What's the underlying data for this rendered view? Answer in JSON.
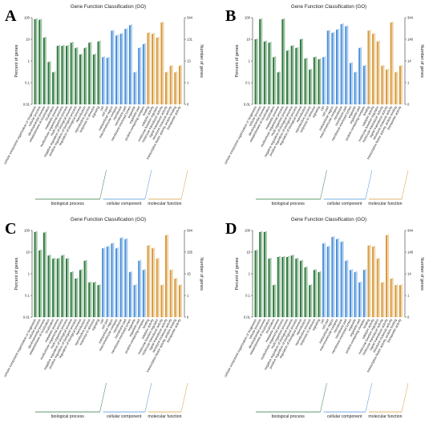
{
  "chart_data": [
    {
      "type": "bar",
      "panel_letter": "A",
      "title": "Gene Function Classification (GO)",
      "ylabel_left": "Percent of genes",
      "ylabel_right": "Number of genes",
      "y_scale": "log",
      "ylim": [
        0.01,
        100
      ],
      "left_ticks": [
        "0.01",
        "0.1",
        "1",
        "10",
        "100"
      ],
      "right_ticks": [
        "0",
        "1",
        "13",
        "131",
        "344"
      ],
      "groups": [
        {
          "name": "biological process",
          "color": "#2f7a3d",
          "categories": [
            "cellular component organization or biogenesis",
            "cellular process",
            "developmental process",
            "establishment of localization",
            "localization",
            "metabolic process",
            "multicellular organismal process",
            "multi-organism process",
            "negative regulation of biological process",
            "positive regulation of biological process",
            "regulation of biological process",
            "reproduction",
            "reproductive process",
            "response to stimulus",
            "signaling"
          ],
          "values": [
            85,
            80,
            12,
            0.9,
            0.3,
            5,
            5,
            5,
            7,
            4,
            2,
            4,
            7,
            2,
            8
          ]
        },
        {
          "name": "cellular component",
          "color": "#4a90d9",
          "categories": [
            "cell",
            "cell part",
            "extracellular region",
            "macromolecular complex",
            "membrane",
            "membrane part",
            "membrane-enclosed lumen",
            "organelle",
            "organelle part",
            "protein-containing complex"
          ],
          "values": [
            1.5,
            1.4,
            25,
            15,
            18,
            30,
            45,
            0.3,
            4,
            6
          ]
        },
        {
          "name": "molecular function",
          "color": "#d89a3c",
          "categories": [
            "binding",
            "catalytic activity",
            "molecular function regulator",
            "molecular transducer activity",
            "signal transducer activity",
            "structural molecule activity",
            "transcription factor activity, protein binding",
            "transporter activity"
          ],
          "values": [
            20,
            18,
            12,
            60,
            0.3,
            0.6,
            0.3,
            0.6
          ]
        }
      ]
    },
    {
      "type": "bar",
      "panel_letter": "B",
      "title": "Gene Function Classification (GO)",
      "ylabel_left": "Percent of genes",
      "ylabel_right": "Number of genes",
      "y_scale": "log",
      "ylim": [
        0.01,
        100
      ],
      "left_ticks": [
        "0.01",
        "0.1",
        "1",
        "10",
        "100"
      ],
      "right_ticks": [
        "0",
        "1",
        "14",
        "140",
        "344"
      ],
      "groups": [
        {
          "name": "biological process",
          "color": "#2f7a3d",
          "categories": [
            "cellular component organization or biogenesis",
            "cellular process",
            "developmental process",
            "establishment of localization",
            "localization",
            "metabolic process",
            "multicellular organismal process",
            "multi-organism process",
            "negative regulation of biological process",
            "positive regulation of biological process",
            "regulation of biological process",
            "reproduction",
            "reproductive process",
            "response to stimulus",
            "signaling"
          ],
          "values": [
            10,
            85,
            8,
            7,
            1.5,
            0.3,
            85,
            3,
            5,
            4,
            10,
            1.3,
            0.4,
            1.5,
            1.2
          ]
        },
        {
          "name": "cellular component",
          "color": "#4a90d9",
          "categories": [
            "cell",
            "cell part",
            "extracellular region",
            "macromolecular complex",
            "membrane",
            "membrane part",
            "membrane-enclosed lumen",
            "organelle",
            "organelle part",
            "protein-containing complex"
          ],
          "values": [
            1.5,
            25,
            20,
            28,
            50,
            40,
            0.8,
            0.3,
            4,
            0.6
          ]
        },
        {
          "name": "molecular function",
          "color": "#d89a3c",
          "categories": [
            "binding",
            "catalytic activity",
            "molecular function regulator",
            "molecular transducer activity",
            "signal transducer activity",
            "structural molecule activity",
            "transcription factor activity, protein binding",
            "transporter activity"
          ],
          "values": [
            25,
            18,
            8,
            0.6,
            0.4,
            60,
            0.3,
            0.6
          ]
        }
      ]
    },
    {
      "type": "bar",
      "panel_letter": "C",
      "title": "Gene Function Classification (GO)",
      "ylabel_left": "Percent of genes",
      "ylabel_right": "Number of genes",
      "y_scale": "log",
      "ylim": [
        0.01,
        100
      ],
      "left_ticks": [
        "0.01",
        "0.1",
        "1",
        "10",
        "100"
      ],
      "right_ticks": [
        "0",
        "1",
        "15",
        "155",
        "344"
      ],
      "groups": [
        {
          "name": "biological process",
          "color": "#2f7a3d",
          "categories": [
            "cellular component organization or biogenesis",
            "cellular process",
            "developmental process",
            "establishment of localization",
            "localization",
            "metabolic process",
            "multicellular organismal process",
            "multi-organism process",
            "negative regulation of biological process",
            "positive regulation of biological process",
            "regulation of biological process",
            "reproduction",
            "reproductive process",
            "response to stimulus",
            "signaling"
          ],
          "values": [
            85,
            12,
            80,
            7,
            5,
            5,
            7,
            5,
            1.2,
            0.6,
            1.5,
            4,
            0.4,
            0.4,
            0.3
          ]
        },
        {
          "name": "cellular component",
          "color": "#4a90d9",
          "categories": [
            "cell",
            "cell part",
            "extracellular region",
            "macromolecular complex",
            "membrane",
            "membrane part",
            "membrane-enclosed lumen",
            "organelle",
            "organelle part",
            "protein-containing complex"
          ],
          "values": [
            15,
            18,
            25,
            15,
            45,
            40,
            1.2,
            0.3,
            4,
            1.5
          ]
        },
        {
          "name": "molecular function",
          "color": "#d89a3c",
          "categories": [
            "binding",
            "catalytic activity",
            "molecular function regulator",
            "molecular transducer activity",
            "signal transducer activity",
            "structural molecule activity",
            "transcription factor activity, protein binding",
            "transporter activity"
          ],
          "values": [
            20,
            15,
            5,
            0.3,
            60,
            1.5,
            0.6,
            0.3
          ]
        }
      ]
    },
    {
      "type": "bar",
      "panel_letter": "D",
      "title": "Gene Function Classification (GO)",
      "ylabel_left": "Percent of genes",
      "ylabel_right": "Number of genes",
      "y_scale": "log",
      "ylim": [
        0.01,
        100
      ],
      "left_ticks": [
        "0.01",
        "0.1",
        "1",
        "10",
        "100"
      ],
      "right_ticks": [
        "0",
        "1",
        "14",
        "148",
        "344"
      ],
      "groups": [
        {
          "name": "biological process",
          "color": "#2f7a3d",
          "categories": [
            "cellular component organization or biogenesis",
            "cellular process",
            "developmental process",
            "establishment of localization",
            "localization",
            "metabolic process",
            "multicellular organismal process",
            "multi-organism process",
            "negative regulation of biological process",
            "positive regulation of biological process",
            "regulation of biological process",
            "reproduction",
            "reproductive process",
            "response to stimulus",
            "signaling"
          ],
          "values": [
            12,
            85,
            85,
            5,
            0.3,
            6,
            6,
            6,
            7,
            5,
            4,
            2,
            0.3,
            1.5,
            1.2
          ]
        },
        {
          "name": "cellular component",
          "color": "#4a90d9",
          "categories": [
            "cell",
            "cell part",
            "extracellular region",
            "macromolecular complex",
            "membrane",
            "membrane part",
            "membrane-enclosed lumen",
            "organelle",
            "organelle part",
            "protein-containing complex"
          ],
          "values": [
            25,
            18,
            50,
            40,
            30,
            4,
            1.5,
            1.2,
            0.4,
            1.5
          ]
        },
        {
          "name": "molecular function",
          "color": "#d89a3c",
          "categories": [
            "binding",
            "catalytic activity",
            "molecular function regulator",
            "molecular transducer activity",
            "signal transducer activity",
            "structural molecule activity",
            "transcription factor activity, protein binding",
            "transporter activity"
          ],
          "values": [
            20,
            18,
            5,
            0.4,
            60,
            0.6,
            0.3,
            0.3
          ]
        }
      ]
    }
  ]
}
